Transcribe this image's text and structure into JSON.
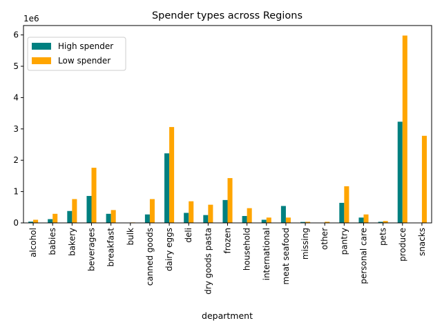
{
  "chart_data": {
    "type": "bar",
    "title": "Spender types across Regions",
    "xlabel": "department",
    "ylabel": "",
    "y_offset_label": "1e6",
    "ylim": [
      0,
      6300000
    ],
    "yticks": [
      0,
      1000000,
      2000000,
      3000000,
      4000000,
      5000000,
      6000000
    ],
    "ytick_labels": [
      "0",
      "1",
      "2",
      "3",
      "4",
      "5",
      "6"
    ],
    "legend_position": "top-left",
    "categories": [
      "alcohol",
      "babies",
      "bakery",
      "beverages",
      "breakfast",
      "bulk",
      "canned goods",
      "dairy eggs",
      "deli",
      "dry goods pasta",
      "frozen",
      "household",
      "international",
      "meat seafood",
      "missing",
      "other",
      "pantry",
      "personal care",
      "pets",
      "produce",
      "snacks"
    ],
    "series": [
      {
        "name": "High spender",
        "color": "#008080",
        "values": [
          40000,
          120000,
          380000,
          860000,
          290000,
          5000,
          270000,
          2220000,
          320000,
          250000,
          730000,
          220000,
          100000,
          540000,
          30000,
          5000,
          640000,
          170000,
          35000,
          3230000,
          0
        ]
      },
      {
        "name": "Low spender",
        "color": "#FFA500",
        "values": [
          100000,
          290000,
          760000,
          1760000,
          410000,
          15000,
          760000,
          3060000,
          690000,
          580000,
          1430000,
          470000,
          170000,
          170000,
          35000,
          35000,
          1170000,
          270000,
          60000,
          5980000,
          2780000
        ]
      }
    ]
  }
}
